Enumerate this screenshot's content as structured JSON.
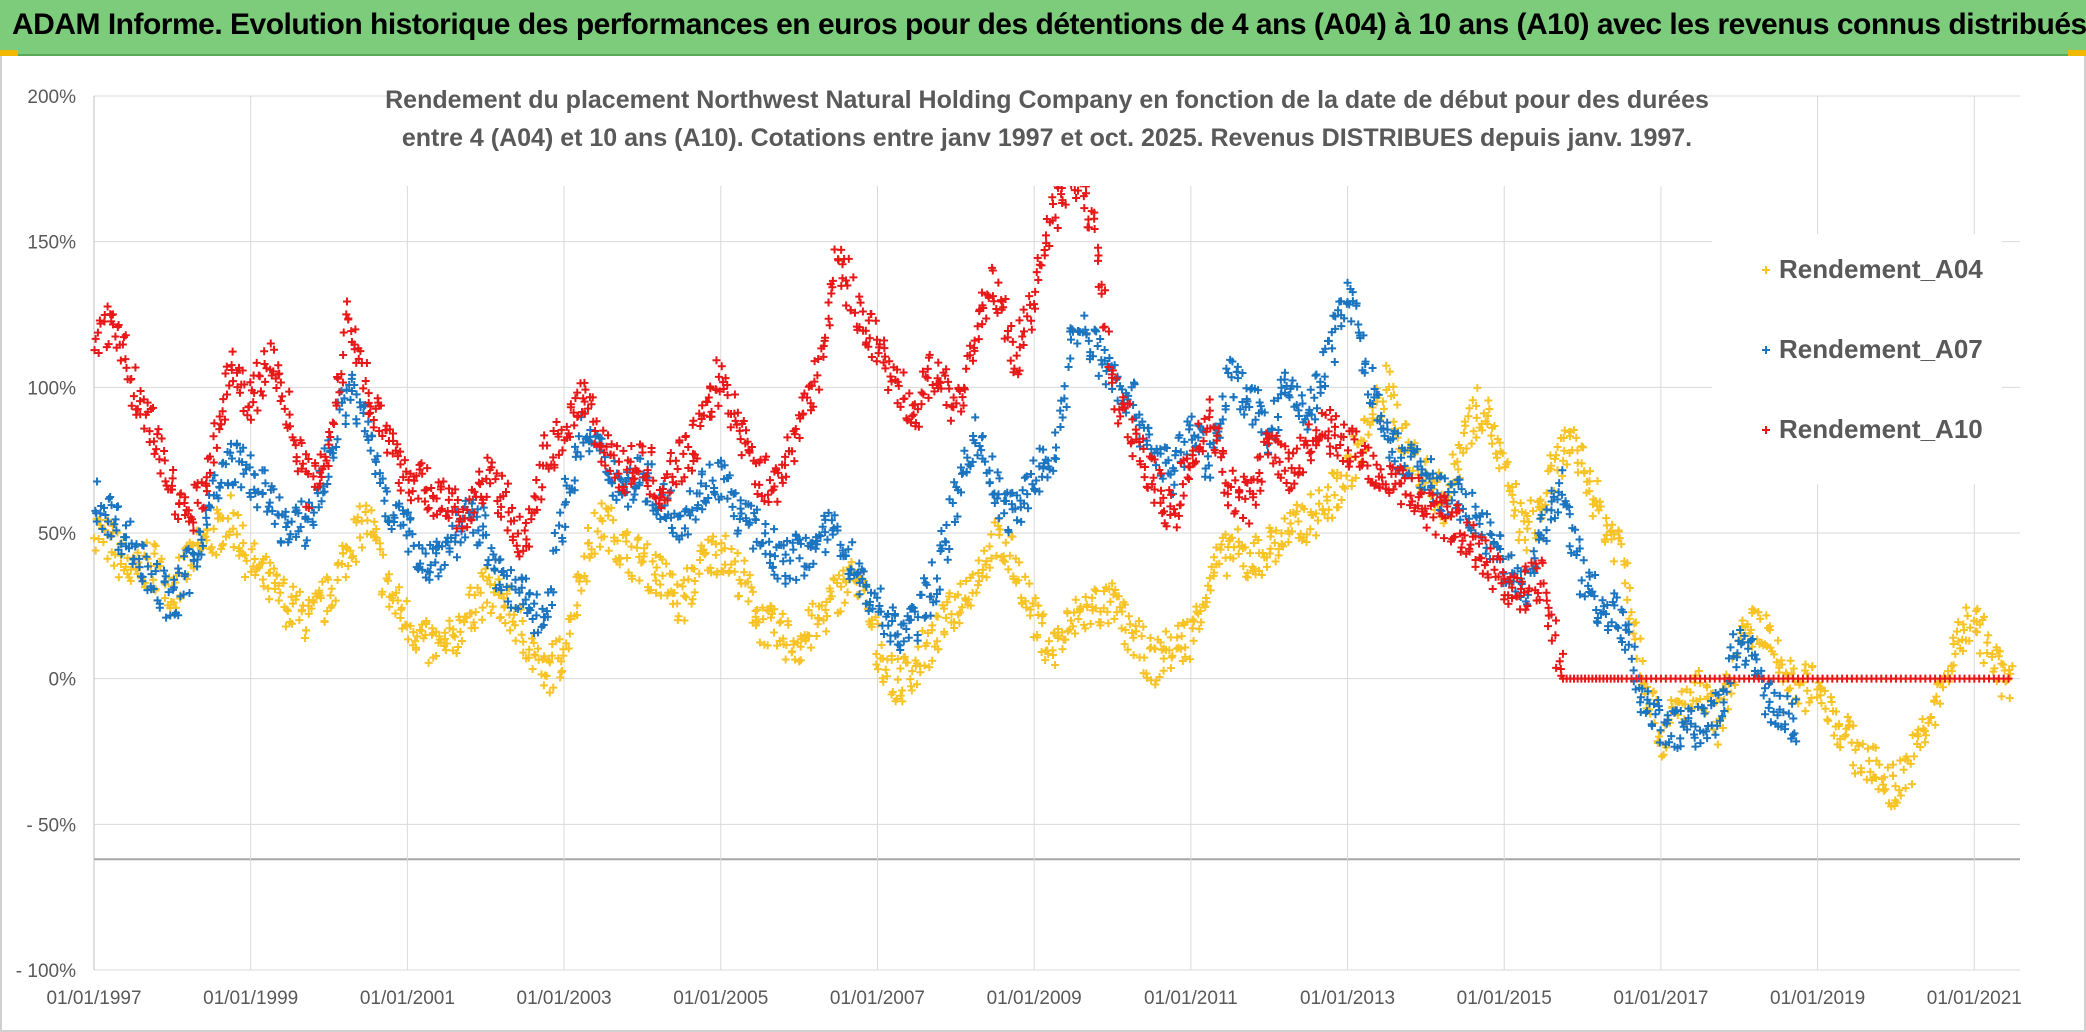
{
  "banner": {
    "title": "ADAM Informe. Evolution historique des performances en euros pour des détentions de 4 ans (A04) à 10 ans (A10) avec les revenus connus distribués"
  },
  "colors": {
    "banner_bg": "#7ccc7c",
    "A04": "#f7c325",
    "A07": "#1a74bf",
    "A10": "#e81818",
    "grid": "#d9d9d9",
    "axis_text": "#595959"
  },
  "chart_data": {
    "type": "scatter",
    "title_lines": [
      "Rendement du placement Northwest Natural Holding Company en fonction de la date de début pour des durées",
      "entre 4 (A04) et 10 ans (A10). Cotations entre janv 1997 et oct. 2025. Revenus DISTRIBUES depuis janv. 1997."
    ],
    "x_ticks": [
      "01/01/1997",
      "01/01/1999",
      "01/01/2001",
      "01/01/2003",
      "01/01/2005",
      "01/01/2007",
      "01/01/2009",
      "01/01/2011",
      "01/01/2013",
      "01/01/2015",
      "01/01/2017",
      "01/01/2019",
      "01/01/2021"
    ],
    "y_ticks": [
      "200%",
      "150%",
      "100%",
      "50%",
      "0%",
      "- 50%",
      "- 100%"
    ],
    "ylim": [
      -100,
      200
    ],
    "xlim": [
      "01/01/1997",
      "01/08/2021"
    ],
    "grid": true,
    "legend_position": "right",
    "marker": "+",
    "series": [
      {
        "name": "Rendement_A04",
        "color": "#f7c325",
        "points": [
          [
            "1997-01",
            52
          ],
          [
            "1997-04",
            45
          ],
          [
            "1997-07",
            35
          ],
          [
            "1997-10",
            40
          ],
          [
            "1998-01",
            30
          ],
          [
            "1998-04",
            42
          ],
          [
            "1998-07",
            48
          ],
          [
            "1998-10",
            55
          ],
          [
            "1999-01",
            40
          ],
          [
            "1999-04",
            32
          ],
          [
            "1999-07",
            25
          ],
          [
            "1999-10",
            20
          ],
          [
            "2000-01",
            28
          ],
          [
            "2000-04",
            45
          ],
          [
            "2000-07",
            55
          ],
          [
            "2000-10",
            30
          ],
          [
            "2001-01",
            20
          ],
          [
            "2001-04",
            12
          ],
          [
            "2001-07",
            10
          ],
          [
            "2001-10",
            22
          ],
          [
            "2002-01",
            30
          ],
          [
            "2002-04",
            25
          ],
          [
            "2002-07",
            15
          ],
          [
            "2002-10",
            0
          ],
          [
            "2003-01",
            10
          ],
          [
            "2003-04",
            40
          ],
          [
            "2003-07",
            55
          ],
          [
            "2003-10",
            45
          ],
          [
            "2004-01",
            40
          ],
          [
            "2004-04",
            35
          ],
          [
            "2004-07",
            25
          ],
          [
            "2004-10",
            40
          ],
          [
            "2005-01",
            45
          ],
          [
            "2005-04",
            35
          ],
          [
            "2005-07",
            20
          ],
          [
            "2005-10",
            15
          ],
          [
            "2006-01",
            12
          ],
          [
            "2006-04",
            20
          ],
          [
            "2006-07",
            30
          ],
          [
            "2006-10",
            35
          ],
          [
            "2007-01",
            10
          ],
          [
            "2007-04",
            -2
          ],
          [
            "2007-07",
            5
          ],
          [
            "2007-10",
            15
          ],
          [
            "2008-01",
            25
          ],
          [
            "2008-04",
            35
          ],
          [
            "2008-07",
            48
          ],
          [
            "2008-10",
            40
          ],
          [
            "2009-01",
            20
          ],
          [
            "2009-04",
            10
          ],
          [
            "2009-07",
            20
          ],
          [
            "2009-10",
            25
          ],
          [
            "2010-01",
            25
          ],
          [
            "2010-04",
            15
          ],
          [
            "2010-07",
            5
          ],
          [
            "2010-10",
            10
          ],
          [
            "2011-01",
            15
          ],
          [
            "2011-04",
            35
          ],
          [
            "2011-07",
            45
          ],
          [
            "2011-10",
            40
          ],
          [
            "2012-01",
            45
          ],
          [
            "2012-04",
            50
          ],
          [
            "2012-07",
            55
          ],
          [
            "2012-10",
            60
          ],
          [
            "2013-01",
            70
          ],
          [
            "2013-04",
            85
          ],
          [
            "2013-07",
            100
          ],
          [
            "2013-10",
            80
          ],
          [
            "2014-01",
            70
          ],
          [
            "2014-04",
            60
          ],
          [
            "2014-07",
            85
          ],
          [
            "2014-10",
            95
          ],
          [
            "2015-01",
            70
          ],
          [
            "2015-04",
            50
          ],
          [
            "2015-07",
            60
          ],
          [
            "2015-10",
            80
          ],
          [
            "2016-01",
            75
          ],
          [
            "2016-04",
            55
          ],
          [
            "2016-07",
            45
          ],
          [
            "2016-10",
            5
          ],
          [
            "2017-01",
            -20
          ],
          [
            "2017-04",
            -10
          ],
          [
            "2017-07",
            -5
          ],
          [
            "2017-10",
            -15
          ],
          [
            "2018-01",
            10
          ],
          [
            "2018-04",
            20
          ],
          [
            "2018-07",
            5
          ],
          [
            "2018-10",
            -5
          ],
          [
            "2019-01",
            0
          ],
          [
            "2019-04",
            -15
          ],
          [
            "2019-07",
            -25
          ],
          [
            "2019-10",
            -32
          ],
          [
            "2020-01",
            -38
          ],
          [
            "2020-04",
            -25
          ],
          [
            "2020-07",
            -10
          ],
          [
            "2020-10",
            10
          ],
          [
            "2021-01",
            22
          ],
          [
            "2021-04",
            5
          ],
          [
            "2021-07",
            -3
          ]
        ]
      },
      {
        "name": "Rendement_A07",
        "color": "#1a74bf",
        "points": [
          [
            "1997-01",
            62
          ],
          [
            "1997-04",
            55
          ],
          [
            "1997-07",
            45
          ],
          [
            "1997-10",
            35
          ],
          [
            "1998-01",
            25
          ],
          [
            "1998-04",
            40
          ],
          [
            "1998-07",
            60
          ],
          [
            "1998-10",
            75
          ],
          [
            "1999-01",
            70
          ],
          [
            "1999-04",
            60
          ],
          [
            "1999-07",
            50
          ],
          [
            "1999-10",
            55
          ],
          [
            "2000-01",
            75
          ],
          [
            "2000-04",
            100
          ],
          [
            "2000-07",
            85
          ],
          [
            "2000-10",
            60
          ],
          [
            "2001-01",
            50
          ],
          [
            "2001-04",
            40
          ],
          [
            "2001-07",
            45
          ],
          [
            "2001-10",
            55
          ],
          [
            "2002-01",
            50
          ],
          [
            "2002-04",
            30
          ],
          [
            "2002-07",
            28
          ],
          [
            "2002-10",
            20
          ],
          [
            "2003-01",
            60
          ],
          [
            "2003-04",
            85
          ],
          [
            "2003-07",
            75
          ],
          [
            "2003-10",
            65
          ],
          [
            "2004-01",
            70
          ],
          [
            "2004-04",
            60
          ],
          [
            "2004-07",
            55
          ],
          [
            "2004-10",
            65
          ],
          [
            "2005-01",
            70
          ],
          [
            "2005-04",
            55
          ],
          [
            "2005-07",
            50
          ],
          [
            "2005-10",
            40
          ],
          [
            "2006-01",
            42
          ],
          [
            "2006-04",
            48
          ],
          [
            "2006-07",
            50
          ],
          [
            "2006-10",
            35
          ],
          [
            "2007-01",
            25
          ],
          [
            "2007-04",
            15
          ],
          [
            "2007-07",
            20
          ],
          [
            "2007-10",
            35
          ],
          [
            "2008-01",
            60
          ],
          [
            "2008-04",
            85
          ],
          [
            "2008-07",
            65
          ],
          [
            "2008-10",
            55
          ],
          [
            "2009-01",
            70
          ],
          [
            "2009-04",
            75
          ],
          [
            "2009-07",
            120
          ],
          [
            "2009-10",
            115
          ],
          [
            "2010-01",
            105
          ],
          [
            "2010-04",
            95
          ],
          [
            "2010-07",
            80
          ],
          [
            "2010-10",
            70
          ],
          [
            "2011-01",
            85
          ],
          [
            "2011-04",
            75
          ],
          [
            "2011-07",
            105
          ],
          [
            "2011-10",
            95
          ],
          [
            "2012-01",
            85
          ],
          [
            "2012-04",
            100
          ],
          [
            "2012-07",
            90
          ],
          [
            "2012-10",
            110
          ],
          [
            "2013-01",
            135
          ],
          [
            "2013-04",
            105
          ],
          [
            "2013-07",
            80
          ],
          [
            "2013-10",
            75
          ],
          [
            "2014-01",
            70
          ],
          [
            "2014-04",
            62
          ],
          [
            "2014-07",
            60
          ],
          [
            "2014-10",
            50
          ],
          [
            "2015-01",
            40
          ],
          [
            "2015-04",
            30
          ],
          [
            "2015-07",
            50
          ],
          [
            "2015-10",
            65
          ],
          [
            "2016-01",
            35
          ],
          [
            "2016-04",
            25
          ],
          [
            "2016-07",
            20
          ],
          [
            "2016-10",
            -5
          ],
          [
            "2017-01",
            -15
          ],
          [
            "2017-04",
            -18
          ],
          [
            "2017-07",
            -15
          ],
          [
            "2017-10",
            -12
          ],
          [
            "2018-01",
            15
          ],
          [
            "2018-04",
            0
          ],
          [
            "2018-07",
            -12
          ],
          [
            "2018-10",
            -15
          ]
        ]
      },
      {
        "name": "Rendement_A10",
        "color": "#e81818",
        "points": [
          [
            "1997-01",
            115
          ],
          [
            "1997-04",
            125
          ],
          [
            "1997-07",
            100
          ],
          [
            "1997-10",
            85
          ],
          [
            "1998-01",
            65
          ],
          [
            "1998-04",
            55
          ],
          [
            "1998-07",
            75
          ],
          [
            "1998-10",
            105
          ],
          [
            "1999-01",
            95
          ],
          [
            "1999-04",
            110
          ],
          [
            "1999-07",
            90
          ],
          [
            "1999-10",
            65
          ],
          [
            "2000-01",
            80
          ],
          [
            "2000-04",
            125
          ],
          [
            "2000-07",
            100
          ],
          [
            "2000-10",
            80
          ],
          [
            "2001-01",
            70
          ],
          [
            "2001-04",
            65
          ],
          [
            "2001-07",
            60
          ],
          [
            "2001-10",
            55
          ],
          [
            "2002-01",
            70
          ],
          [
            "2002-04",
            60
          ],
          [
            "2002-07",
            45
          ],
          [
            "2002-10",
            75
          ],
          [
            "2003-01",
            85
          ],
          [
            "2003-04",
            100
          ],
          [
            "2003-07",
            80
          ],
          [
            "2003-10",
            70
          ],
          [
            "2004-01",
            75
          ],
          [
            "2004-04",
            65
          ],
          [
            "2004-07",
            75
          ],
          [
            "2004-10",
            85
          ],
          [
            "2005-01",
            105
          ],
          [
            "2005-04",
            85
          ],
          [
            "2005-07",
            70
          ],
          [
            "2005-10",
            65
          ],
          [
            "2006-01",
            90
          ],
          [
            "2006-04",
            105
          ],
          [
            "2006-07",
            145
          ],
          [
            "2006-10",
            125
          ],
          [
            "2007-01",
            115
          ],
          [
            "2007-04",
            100
          ],
          [
            "2007-07",
            90
          ],
          [
            "2007-10",
            110
          ],
          [
            "2008-01",
            90
          ],
          [
            "2008-04",
            120
          ],
          [
            "2008-07",
            135
          ],
          [
            "2008-10",
            110
          ],
          [
            "2009-01",
            130
          ],
          [
            "2009-04",
            160
          ],
          [
            "2009-07",
            170
          ],
          [
            "2009-10",
            160
          ],
          [
            "2010-01",
            100
          ],
          [
            "2010-04",
            85
          ],
          [
            "2010-07",
            70
          ],
          [
            "2010-10",
            55
          ],
          [
            "2011-01",
            75
          ],
          [
            "2011-04",
            90
          ],
          [
            "2011-07",
            65
          ],
          [
            "2011-10",
            60
          ],
          [
            "2012-01",
            80
          ],
          [
            "2012-04",
            70
          ],
          [
            "2012-07",
            80
          ],
          [
            "2012-10",
            85
          ],
          [
            "2013-01",
            80
          ],
          [
            "2013-04",
            75
          ],
          [
            "2013-07",
            70
          ],
          [
            "2013-10",
            65
          ],
          [
            "2014-01",
            60
          ],
          [
            "2014-04",
            55
          ],
          [
            "2014-07",
            50
          ],
          [
            "2014-10",
            40
          ],
          [
            "2015-01",
            35
          ],
          [
            "2015-04",
            30
          ],
          [
            "2015-07",
            35
          ],
          [
            "2015-10",
            0
          ],
          [
            "2016-07",
            0
          ],
          [
            "2017-07",
            0
          ],
          [
            "2018-07",
            0
          ],
          [
            "2019-07",
            0
          ],
          [
            "2020-07",
            0
          ],
          [
            "2021-07",
            0
          ]
        ]
      }
    ]
  }
}
